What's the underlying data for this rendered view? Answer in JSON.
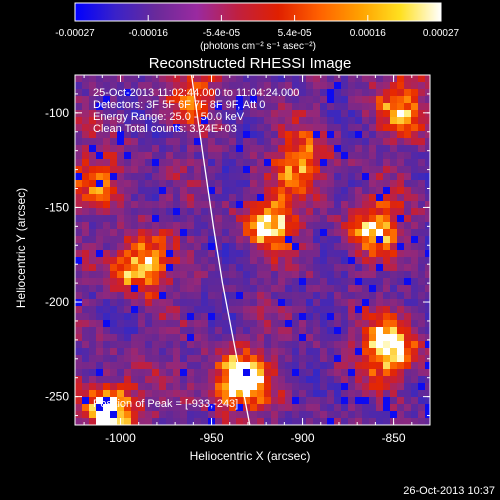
{
  "colorbar": {
    "tick_labels": [
      "-0.00027",
      "-0.00016",
      "-5.4e-05",
      "5.4e-05",
      "0.00016",
      "0.00027"
    ],
    "unit_label": "(photons cm⁻² s⁻¹ asec⁻²)",
    "colors": [
      "#0000ff",
      "#3a22c8",
      "#6a2a9a",
      "#9a2aa0",
      "#c02040",
      "#e02000",
      "#ff6000",
      "#ffa000",
      "#ffe020",
      "#ffffff"
    ]
  },
  "title": "Reconstructed RHESSI Image",
  "info": {
    "line1": "25-Oct-2013 11:02:44.000 to 11:04:24.000",
    "line2": "Detectors: 3F 5F 6F 7F 8F 9F, Att 0",
    "line3": "Energy Range: 25.0 - 50.0 keV",
    "line4": "Clean     Total counts: 3.24E+03"
  },
  "peak_label": "Position of Peak = [-933,-243]",
  "footer_date": "26-Oct-2013 10:37",
  "chart_data": {
    "type": "heatmap",
    "xlabel": "Heliocentric X (arcsec)",
    "ylabel": "Heliocentric Y (arcsec)",
    "xlim": [
      -1025,
      -830
    ],
    "ylim": [
      -265,
      -80
    ],
    "x_ticks": [
      -1000,
      -950,
      -900,
      -850
    ],
    "y_ticks": [
      -100,
      -150,
      -200,
      -250
    ],
    "x_tick_labels": [
      "-1000",
      "-950",
      "-900",
      "-850"
    ],
    "y_tick_labels": [
      "-100",
      "-150",
      "-200",
      "-250"
    ],
    "value_range": [
      -0.00027,
      0.00027
    ],
    "peak_position": [
      -933,
      -243
    ],
    "bright_sources": [
      {
        "x": -935,
        "y": -242,
        "intensity": 1.0
      },
      {
        "x": -1005,
        "y": -257,
        "intensity": 0.92
      },
      {
        "x": -990,
        "y": -180,
        "intensity": 0.85
      },
      {
        "x": -852,
        "y": -225,
        "intensity": 0.85
      },
      {
        "x": -918,
        "y": -158,
        "intensity": 0.7
      },
      {
        "x": -860,
        "y": -160,
        "intensity": 0.65
      },
      {
        "x": -900,
        "y": -125,
        "intensity": 0.6
      },
      {
        "x": -845,
        "y": -95,
        "intensity": 0.55
      },
      {
        "x": -1010,
        "y": -135,
        "intensity": 0.5
      },
      {
        "x": -960,
        "y": -90,
        "intensity": 0.45
      }
    ],
    "limb_curve": [
      {
        "x": -961,
        "y": -80
      },
      {
        "x": -955,
        "y": -120
      },
      {
        "x": -949,
        "y": -160
      },
      {
        "x": -944,
        "y": -190
      },
      {
        "x": -938,
        "y": -220
      },
      {
        "x": -932,
        "y": -250
      },
      {
        "x": -929,
        "y": -265
      }
    ]
  }
}
